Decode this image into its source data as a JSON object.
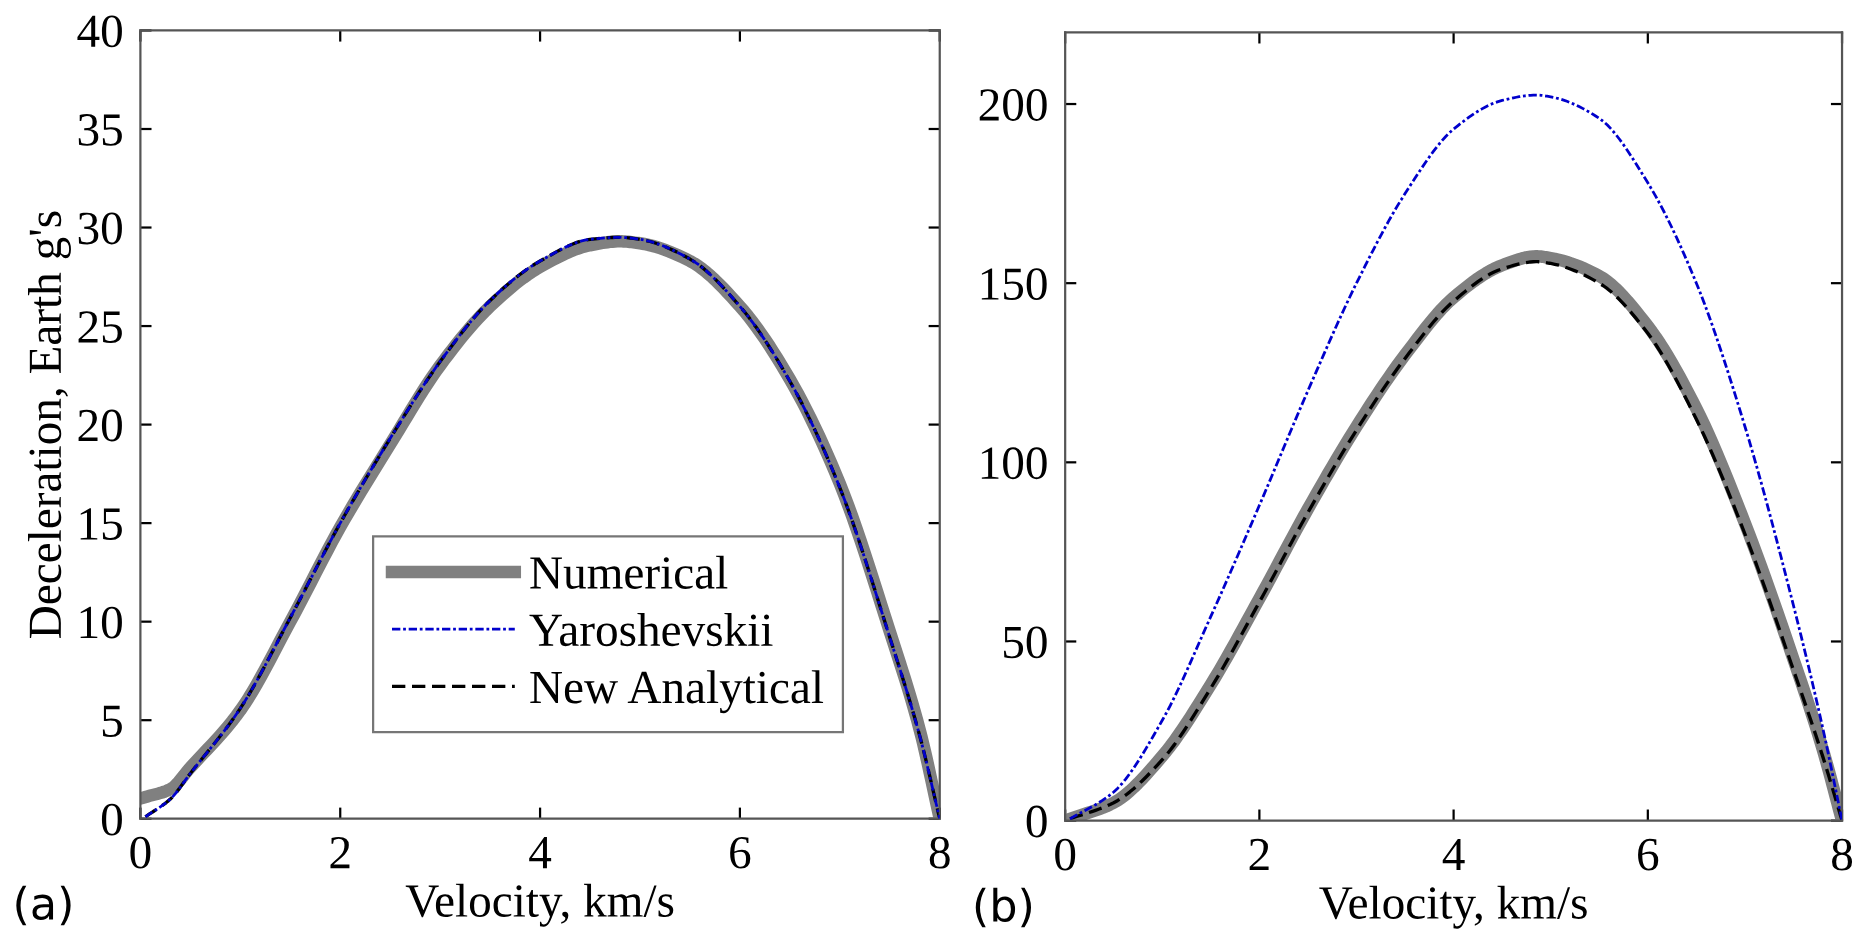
{
  "chart_data": [
    {
      "type": "line",
      "xlabel": "Velocity, km/s",
      "ylabel": "Deceleration, Earth g's",
      "xlim": [
        0,
        8
      ],
      "ylim": [
        0,
        40
      ],
      "xticks": [
        0,
        2,
        4,
        6,
        8
      ],
      "yticks": [
        0,
        5,
        10,
        15,
        20,
        25,
        30,
        35,
        40
      ],
      "grid": false,
      "legend": "bottom",
      "annotations": [
        "(a)"
      ],
      "series": [
        {
          "name": "Numerical",
          "color": "#808080",
          "line_style": "solid",
          "x": [
            0.05,
            0.3,
            0.5,
            1,
            1.5,
            2,
            2.5,
            3,
            3.5,
            4,
            4.5,
            4.8,
            5,
            5.5,
            6,
            6.5,
            7,
            7.5,
            7.8,
            8
          ],
          "values": [
            1.1,
            1.5,
            2.6,
            5.5,
            10,
            14.8,
            19,
            23,
            26,
            28,
            29.1,
            29.3,
            29.2,
            28.3,
            26,
            22.3,
            17,
            9.5,
            4.5,
            0
          ]
        },
        {
          "name": "Yaroshevskii",
          "color": "#0000cc",
          "line_style": "dashdot",
          "x": [
            0.05,
            0.3,
            0.5,
            1,
            1.5,
            2,
            2.5,
            3,
            3.5,
            4,
            4.5,
            4.8,
            5,
            5.5,
            6,
            6.5,
            7,
            7.5,
            7.8,
            8
          ],
          "values": [
            0.1,
            1.0,
            2.3,
            5.6,
            10.2,
            15,
            19.3,
            23.2,
            26.3,
            28.3,
            29.4,
            29.5,
            29.4,
            28.4,
            26,
            22.2,
            16.8,
            9.2,
            4.2,
            0
          ]
        },
        {
          "name": "New Analytical",
          "color": "#000000",
          "line_style": "dashed",
          "x": [
            0.05,
            0.3,
            0.5,
            1,
            1.5,
            2,
            2.5,
            3,
            3.5,
            4,
            4.5,
            4.8,
            5,
            5.5,
            6,
            6.5,
            7,
            7.5,
            7.8,
            8
          ],
          "values": [
            0.1,
            1.0,
            2.3,
            5.6,
            10.2,
            15,
            19.3,
            23.2,
            26.3,
            28.3,
            29.4,
            29.5,
            29.4,
            28.4,
            26,
            22.2,
            16.8,
            9.2,
            4.2,
            0
          ]
        }
      ]
    },
    {
      "type": "line",
      "xlabel": "Velocity, km/s",
      "xlim": [
        0,
        8
      ],
      "ylim": [
        0,
        220
      ],
      "xticks": [
        0,
        2,
        4,
        6,
        8
      ],
      "yticks": [
        0,
        50,
        100,
        150,
        200
      ],
      "grid": false,
      "annotations": [
        "(b)"
      ],
      "series": [
        {
          "color": "#808080",
          "line_style": "solid",
          "x": [
            0.05,
            0.5,
            1,
            1.5,
            2,
            2.5,
            3,
            3.5,
            4,
            4.5,
            4.85,
            5,
            5.5,
            6,
            6.5,
            7,
            7.5,
            7.8,
            8
          ],
          "values": [
            0.5,
            5,
            18,
            38,
            62,
            87,
            110,
            130,
            146,
            155,
            157.5,
            157,
            152,
            138,
            115,
            83,
            45,
            20,
            0
          ]
        },
        {
          "color": "#0000cc",
          "line_style": "dashdot",
          "x": [
            0.05,
            0.5,
            1,
            1.5,
            2,
            2.5,
            3,
            3.5,
            4,
            4.5,
            4.85,
            5,
            5.5,
            6,
            6.5,
            7,
            7.5,
            7.8,
            8
          ],
          "values": [
            0.5,
            8,
            28,
            57,
            88,
            120,
            150,
            175,
            193,
            201,
            202.5,
            202,
            196,
            178,
            150,
            110,
            60,
            26,
            0
          ]
        },
        {
          "color": "#000000",
          "line_style": "dashed",
          "x": [
            0.05,
            0.5,
            1,
            1.5,
            2,
            2.5,
            3,
            3.5,
            4,
            4.5,
            4.85,
            5,
            5.5,
            6,
            6.5,
            7,
            7.5,
            7.8,
            8
          ],
          "values": [
            0.5,
            5,
            17,
            37,
            61,
            86,
            109,
            129,
            145,
            154,
            156,
            155.5,
            150,
            136,
            112,
            80,
            42,
            18,
            0
          ]
        }
      ]
    }
  ]
}
